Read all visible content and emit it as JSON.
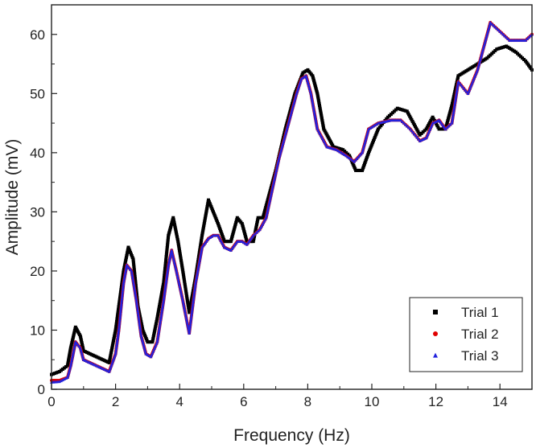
{
  "chart_data": {
    "type": "scatter",
    "title": "",
    "xlabel": "Frequency (Hz)",
    "ylabel": "Amplitude (mV)",
    "xlim": [
      0,
      15
    ],
    "ylim": [
      0,
      65
    ],
    "xticks": [
      0,
      2,
      4,
      6,
      8,
      10,
      12,
      14
    ],
    "yticks": [
      0,
      10,
      20,
      30,
      40,
      50,
      60
    ],
    "grid": false,
    "legend": {
      "position": "bottom-right"
    },
    "series": [
      {
        "name": "Trial 1",
        "color": "#000000",
        "marker": "square",
        "x": [
          0,
          0.25,
          0.5,
          0.6,
          0.75,
          0.9,
          1.0,
          1.2,
          1.4,
          1.6,
          1.8,
          2.0,
          2.1,
          2.25,
          2.4,
          2.55,
          2.7,
          2.85,
          3.0,
          3.15,
          3.3,
          3.5,
          3.65,
          3.8,
          3.95,
          4.1,
          4.3,
          4.5,
          4.7,
          4.9,
          5.05,
          5.2,
          5.4,
          5.6,
          5.8,
          5.95,
          6.1,
          6.3,
          6.45,
          6.6,
          6.8,
          7.0,
          7.3,
          7.6,
          7.85,
          8.0,
          8.15,
          8.3,
          8.5,
          8.8,
          9.1,
          9.3,
          9.5,
          9.7,
          9.9,
          10.2,
          10.5,
          10.8,
          11.1,
          11.3,
          11.5,
          11.7,
          11.9,
          12.1,
          12.3,
          12.5,
          12.7,
          13.0,
          13.3,
          13.6,
          13.9,
          14.2,
          14.5,
          14.8,
          15.0
        ],
        "y": [
          2.5,
          3,
          4,
          7,
          10.5,
          9,
          6.5,
          6,
          5.5,
          5,
          4.5,
          10,
          14,
          20,
          24,
          22,
          14,
          10,
          8,
          8,
          12,
          18,
          26,
          29,
          25,
          20,
          13,
          19,
          26,
          32,
          30,
          28,
          25,
          25,
          29,
          28,
          25,
          25,
          29,
          29,
          33,
          37,
          44,
          50,
          53.5,
          54,
          53,
          50,
          44,
          41,
          40.5,
          39.5,
          37,
          37,
          40,
          44,
          46,
          47.5,
          47,
          45,
          43,
          44,
          46,
          44,
          44,
          48,
          53,
          54,
          55,
          56,
          57.5,
          58,
          57,
          55.5,
          54
        ]
      },
      {
        "name": "Trial 2",
        "color": "#e00000",
        "marker": "circle",
        "x": [
          0,
          0.25,
          0.5,
          0.6,
          0.75,
          0.9,
          1.0,
          1.2,
          1.4,
          1.6,
          1.8,
          2.0,
          2.1,
          2.25,
          2.35,
          2.5,
          2.65,
          2.8,
          2.95,
          3.1,
          3.3,
          3.5,
          3.65,
          3.75,
          3.9,
          4.1,
          4.3,
          4.5,
          4.7,
          4.9,
          5.05,
          5.2,
          5.4,
          5.6,
          5.8,
          5.95,
          6.1,
          6.3,
          6.5,
          6.7,
          6.9,
          7.1,
          7.4,
          7.65,
          7.8,
          7.95,
          8.1,
          8.3,
          8.6,
          8.9,
          9.2,
          9.45,
          9.7,
          9.9,
          10.2,
          10.6,
          10.9,
          11.2,
          11.5,
          11.7,
          11.9,
          12.1,
          12.3,
          12.5,
          12.7,
          13.0,
          13.3,
          13.5,
          13.7,
          13.9,
          14.1,
          14.3,
          14.5,
          14.8,
          15.0
        ],
        "y": [
          1.5,
          1.5,
          2,
          4,
          8,
          7,
          5,
          4.5,
          4,
          3.5,
          3,
          6,
          10,
          18,
          21,
          20,
          15,
          9,
          6,
          5.5,
          8,
          15,
          21,
          23.5,
          20,
          15,
          9.5,
          18,
          24,
          25.5,
          26,
          26,
          24,
          23.5,
          25,
          25,
          24.5,
          26,
          27,
          29,
          34,
          39,
          45,
          50,
          52.5,
          53,
          50,
          44,
          41,
          40.5,
          39.5,
          38.5,
          40,
          44,
          45,
          45.5,
          45.5,
          44,
          42,
          42.5,
          45,
          45.5,
          44,
          45,
          52,
          50,
          54,
          58,
          62,
          61,
          60,
          59,
          59,
          59,
          60
        ]
      },
      {
        "name": "Trial 3",
        "color": "#2222dd",
        "marker": "triangle",
        "x": [
          0,
          0.25,
          0.5,
          0.6,
          0.75,
          0.9,
          1.0,
          1.2,
          1.4,
          1.6,
          1.8,
          2.0,
          2.1,
          2.25,
          2.35,
          2.5,
          2.65,
          2.8,
          2.95,
          3.1,
          3.3,
          3.5,
          3.65,
          3.75,
          3.9,
          4.1,
          4.3,
          4.5,
          4.7,
          4.9,
          5.05,
          5.2,
          5.4,
          5.6,
          5.8,
          5.95,
          6.1,
          6.3,
          6.5,
          6.7,
          6.9,
          7.1,
          7.4,
          7.65,
          7.8,
          7.95,
          8.1,
          8.3,
          8.6,
          8.9,
          9.2,
          9.45,
          9.7,
          9.9,
          10.2,
          10.6,
          10.9,
          11.2,
          11.5,
          11.7,
          11.9,
          12.1,
          12.3,
          12.5,
          12.7,
          13.0,
          13.3,
          13.5,
          13.7,
          13.9,
          14.1,
          14.3,
          14.5,
          14.8,
          15.0
        ],
        "y": [
          1.2,
          1.3,
          2,
          4,
          8,
          7,
          5,
          4.5,
          4,
          3.5,
          3,
          6,
          10,
          18,
          21,
          20,
          15,
          9,
          6,
          5.5,
          8,
          15,
          21,
          23.5,
          20,
          15,
          9.5,
          18,
          24,
          25.5,
          26,
          26,
          24,
          23.5,
          25,
          25,
          24.5,
          26,
          27,
          29,
          34,
          39,
          45,
          50,
          52.5,
          53,
          50,
          44,
          41,
          40.5,
          39.5,
          38.5,
          40,
          44,
          45,
          45.5,
          45.5,
          44,
          42,
          42.5,
          45,
          45.5,
          44,
          45,
          52,
          50,
          54,
          58,
          62,
          61,
          60,
          59,
          59,
          59,
          60
        ]
      }
    ]
  }
}
